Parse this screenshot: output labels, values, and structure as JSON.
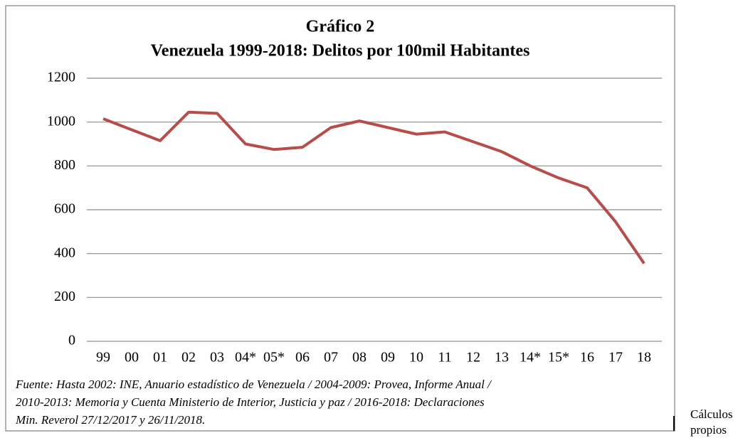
{
  "chart_data": {
    "type": "line",
    "title": [
      "Gráfico 2",
      "Venezuela 1999-2018: Delitos por 100mil Habitantes"
    ],
    "categories": [
      "99",
      "00",
      "01",
      "02",
      "03",
      "04*",
      "05*",
      "06",
      "07",
      "08",
      "09",
      "10",
      "11",
      "12",
      "13",
      "14*",
      "15*",
      "16",
      "17",
      "18"
    ],
    "series": [
      {
        "color": "#b84c48",
        "values": [
          1015,
          965,
          915,
          1045,
          1040,
          900,
          875,
          885,
          975,
          1005,
          975,
          945,
          955,
          910,
          865,
          800,
          745,
          700,
          545,
          355
        ]
      }
    ],
    "ylim": [
      0,
      1200
    ],
    "yticks": [
      0,
      200,
      400,
      600,
      800,
      1000,
      1200
    ],
    "grid": true,
    "source": [
      "Fuente:  Hasta 2002: INE, Anuario estadístico de Venezuela / 2004-2009: Provea, Informe Anual /",
      "2010-2013: Memoria y Cuenta Ministerio de Interior, Justicia y paz / 2016-2018: Declaraciones",
      "Min. Reverol 27/12/2017 y 26/11/2018."
    ],
    "note": [
      "Cálculos",
      "propios"
    ]
  }
}
